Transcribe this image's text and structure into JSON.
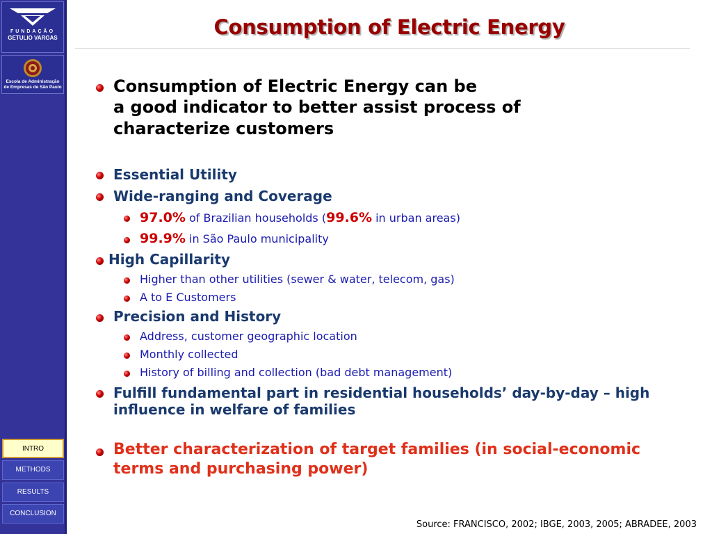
{
  "sidebar": {
    "logo_top_line1": "FUNDAÇÃO",
    "logo_top_line2": "GETULIO VARGAS",
    "logo_bottom_line1": "Escola de Administração",
    "logo_bottom_line2": "de Empresas de São Paulo",
    "nav": [
      {
        "label": "INTRO",
        "active": true
      },
      {
        "label": "METHODS",
        "active": false
      },
      {
        "label": "RESULTS",
        "active": false
      },
      {
        "label": "CONCLUSION",
        "active": false
      }
    ]
  },
  "slide": {
    "title": "Consumption of Electric Energy",
    "intro_lines": [
      "Consumption of Electric Energy can be",
      "a good indicator to better assist process of",
      "characterize customers"
    ],
    "essential": "Essential Utility",
    "wide": "Wide-ranging and Coverage",
    "wide_sub1": {
      "pct1": "97.0%",
      "text1": " of Brazilian households (",
      "pct2": "99.6%",
      "text2": " in urban areas)"
    },
    "wide_sub2": {
      "pct": "99.9%",
      "text": " in São Paulo municipality"
    },
    "capillarity": "High Capillarity",
    "capillarity_sub": [
      "Higher than other utilities (sewer & water, telecom, gas)",
      "A to E Customers"
    ],
    "precision": "Precision and History",
    "precision_sub": [
      "Address, customer geographic location",
      "Monthly collected",
      "History of billing and collection (bad debt management)"
    ],
    "fulfill_lines": [
      "Fulfill fundamental part in residential households’ day-by-day – high",
      "influence in welfare of families"
    ],
    "better_lines": [
      "Better characterization of target families (in social-economic",
      "terms and purchasing power)"
    ],
    "source": "Source: FRANCISCO, 2002; IBGE, 2003, 2005; ABRADEE, 2003"
  },
  "colors": {
    "sidebar": "#333399",
    "title": "#990000",
    "heading": "#1a3a6e",
    "subitem": "#1a1ab0",
    "highlight": "#cc0000",
    "emphasis": "#e0301a"
  }
}
